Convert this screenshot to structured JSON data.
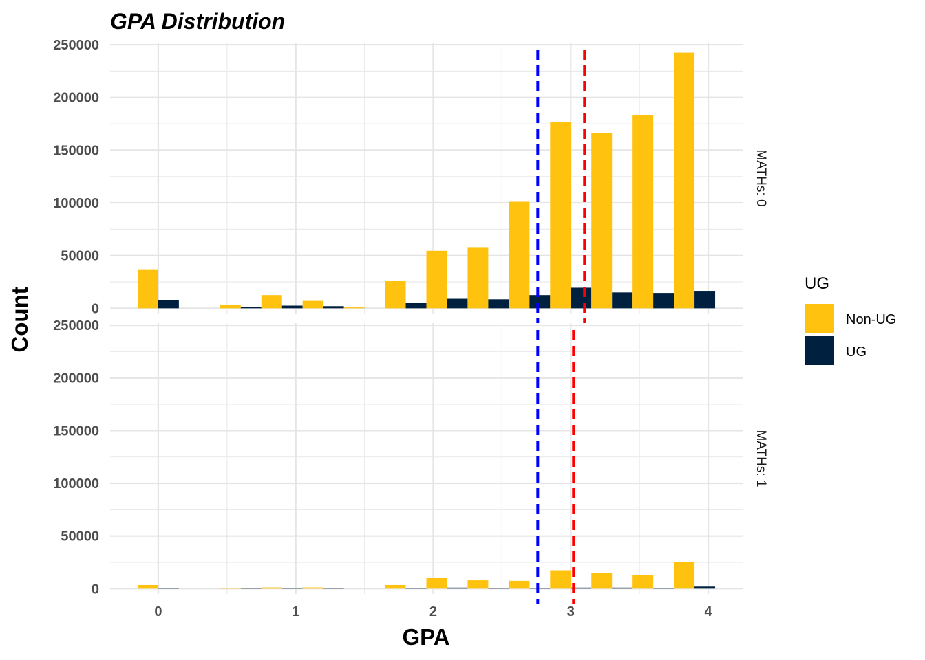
{
  "chart_data": {
    "type": "bar",
    "title": "GPA Distribution",
    "xlabel": "GPA",
    "ylabel": "Count",
    "xlim": [
      -0.35,
      4.25
    ],
    "ylim": [
      -5000,
      252000
    ],
    "x_ticks": [
      0,
      1,
      2,
      3,
      4
    ],
    "y_ticks": [
      0,
      50000,
      100000,
      150000,
      200000,
      250000
    ],
    "grid": true,
    "bin_width": 0.3,
    "legend": {
      "title": "UG",
      "position": "right",
      "entries": [
        {
          "label": "Non-UG",
          "color": "#FFC20E"
        },
        {
          "label": "UG",
          "color": "#00203F"
        }
      ]
    },
    "panels": [
      {
        "strip_label": "MATHs: 0",
        "vlines": [
          {
            "x": 2.76,
            "color": "#0000FF",
            "style": "dashed"
          },
          {
            "x": 3.1,
            "color": "#FF0000",
            "style": "dashed"
          }
        ],
        "bins": [
          0,
          0.6,
          0.9,
          1.2,
          1.5,
          1.8,
          2.1,
          2.4,
          2.7,
          3.0,
          3.3,
          3.6,
          3.9
        ],
        "series": [
          {
            "name": "Non-UG",
            "values": [
              37000,
              3500,
              12500,
              7000,
              800,
              26000,
              54500,
              58000,
              101000,
              176500,
              166500,
              183000,
              242500
            ]
          },
          {
            "name": "UG",
            "values": [
              7500,
              1000,
              2500,
              2000,
              0,
              5000,
              9000,
              8500,
              12500,
              19500,
              15000,
              14500,
              16500
            ]
          }
        ]
      },
      {
        "strip_label": "MATHs: 1",
        "vlines": [
          {
            "x": 2.76,
            "color": "#0000FF",
            "style": "dashed"
          },
          {
            "x": 3.02,
            "color": "#FF0000",
            "style": "dashed"
          }
        ],
        "bins": [
          0,
          0.6,
          0.9,
          1.2,
          1.5,
          1.8,
          2.1,
          2.4,
          2.7,
          3.0,
          3.3,
          3.6,
          3.9
        ],
        "series": [
          {
            "name": "Non-UG",
            "values": [
              3500,
              600,
              1200,
              1200,
              0,
              3500,
              10000,
              8000,
              7500,
              17500,
              15000,
              13000,
              25500
            ]
          },
          {
            "name": "UG",
            "values": [
              300,
              100,
              400,
              400,
              0,
              500,
              1000,
              600,
              500,
              1000,
              1000,
              600,
              2000
            ]
          }
        ]
      }
    ]
  }
}
